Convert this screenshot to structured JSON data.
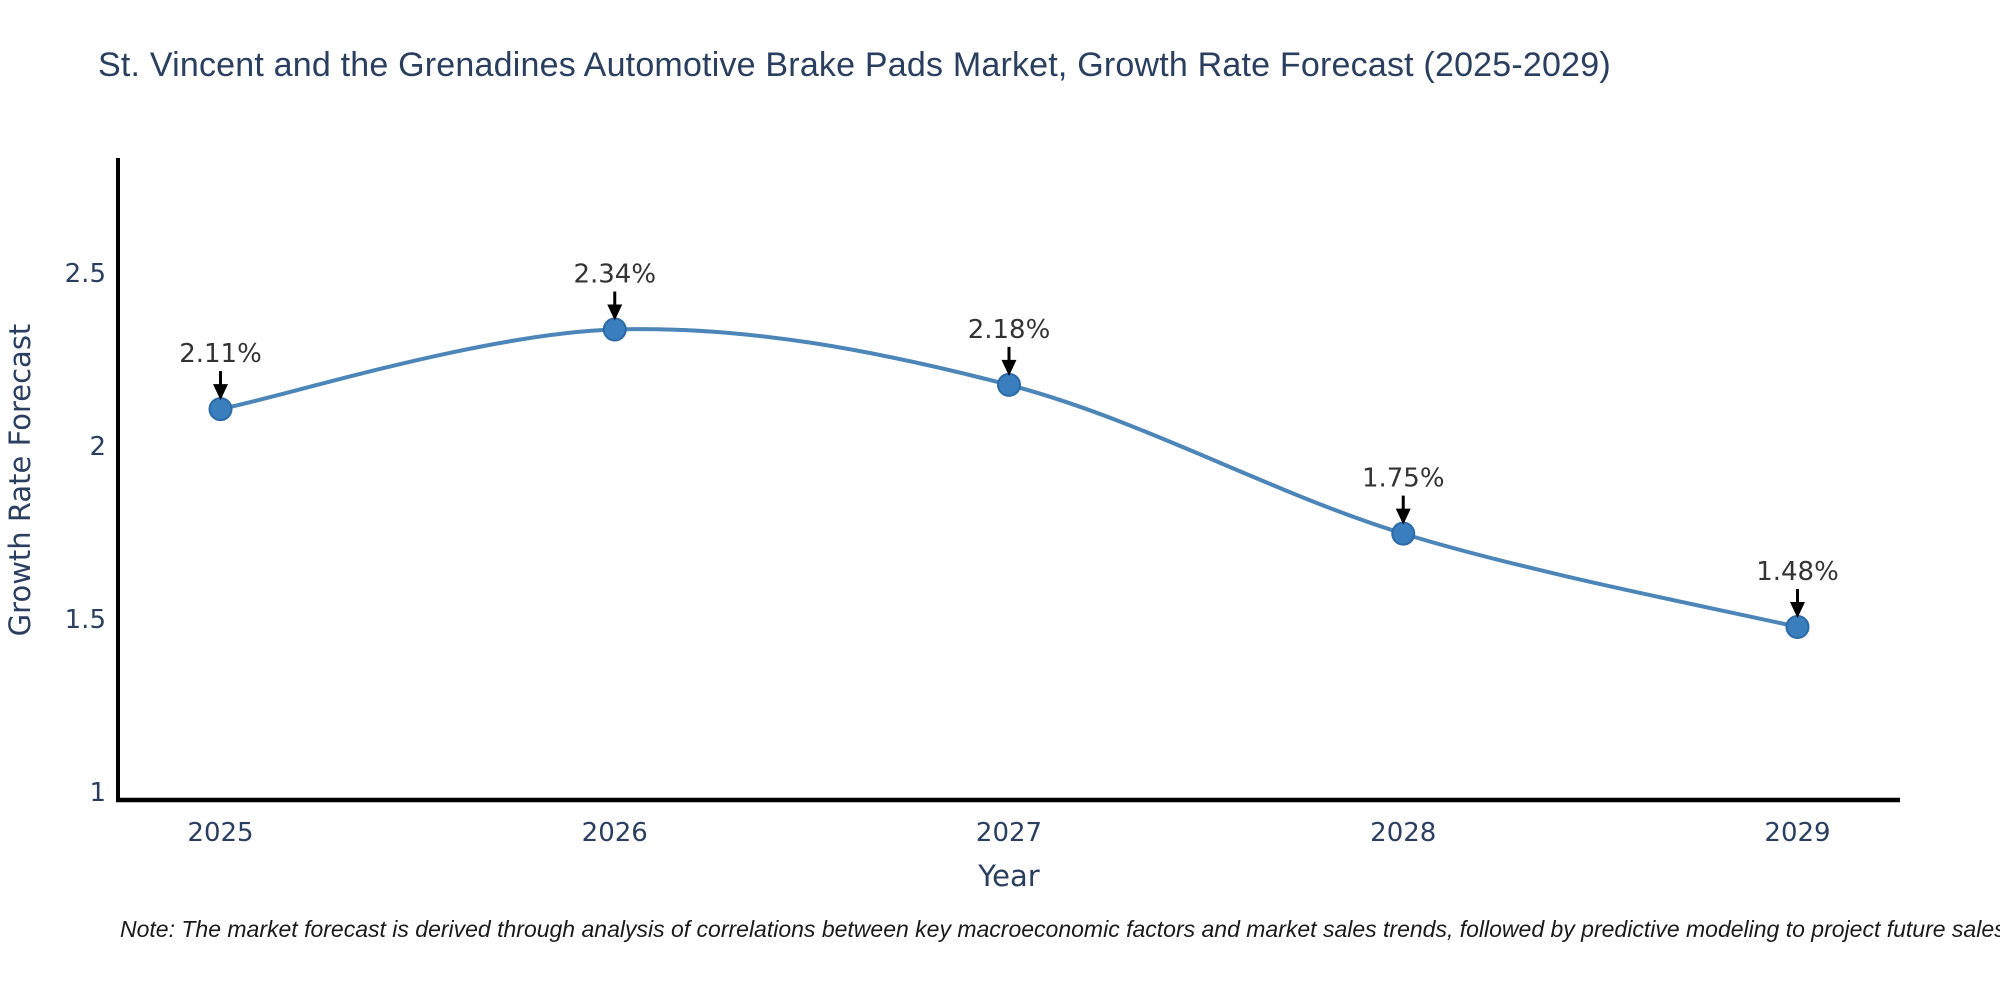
{
  "page": {
    "title": "St. Vincent and the Grenadines Automotive Brake Pads Market, Growth Rate Forecast (2025-2029)",
    "note": "Note: The market forecast is derived through analysis of correlations between key macroeconomic factors and market sales trends, followed by predictive modeling to project future sales"
  },
  "chart_data": {
    "type": "line",
    "curve": "spline",
    "title": "St. Vincent and the Grenadines Automotive Brake Pads Market, Growth Rate Forecast (2025-2029)",
    "xlabel": "Year",
    "ylabel": "Growth Rate Forecast",
    "x": [
      2025,
      2026,
      2027,
      2028,
      2029
    ],
    "series": [
      {
        "name": "Growth Rate Forecast",
        "values": [
          2.11,
          2.34,
          2.18,
          1.75,
          1.48
        ]
      }
    ],
    "point_labels": [
      "2.11%",
      "2.34%",
      "2.18%",
      "1.75%",
      "1.48%"
    ],
    "xtick_labels": [
      "2025",
      "2026",
      "2027",
      "2028",
      "2029"
    ],
    "ytick_values": [
      1,
      1.5,
      2,
      2.5
    ],
    "ytick_labels": [
      "1",
      "1.5",
      "2",
      "2.5"
    ],
    "xlim": [
      2024.74,
      2029.26
    ],
    "ylim": [
      0.98,
      2.83
    ],
    "grid": false,
    "legend": "none",
    "annotations": "value labels above each point with black arrows pointing down to markers",
    "markers": true,
    "colors": {
      "line": "#4c86b8",
      "marker_fill": "#3a7ebd",
      "marker_edge": "#2b6ba8",
      "axis_spine": "#000000",
      "tick_text": "#2a3f5f",
      "title_text": "#2a3f5f",
      "axis_label_text": "#2a3f5f",
      "annotation_text": "#333333",
      "arrow": "#000000",
      "note_text": "#1a1a1a",
      "background": "#ffffff"
    }
  }
}
